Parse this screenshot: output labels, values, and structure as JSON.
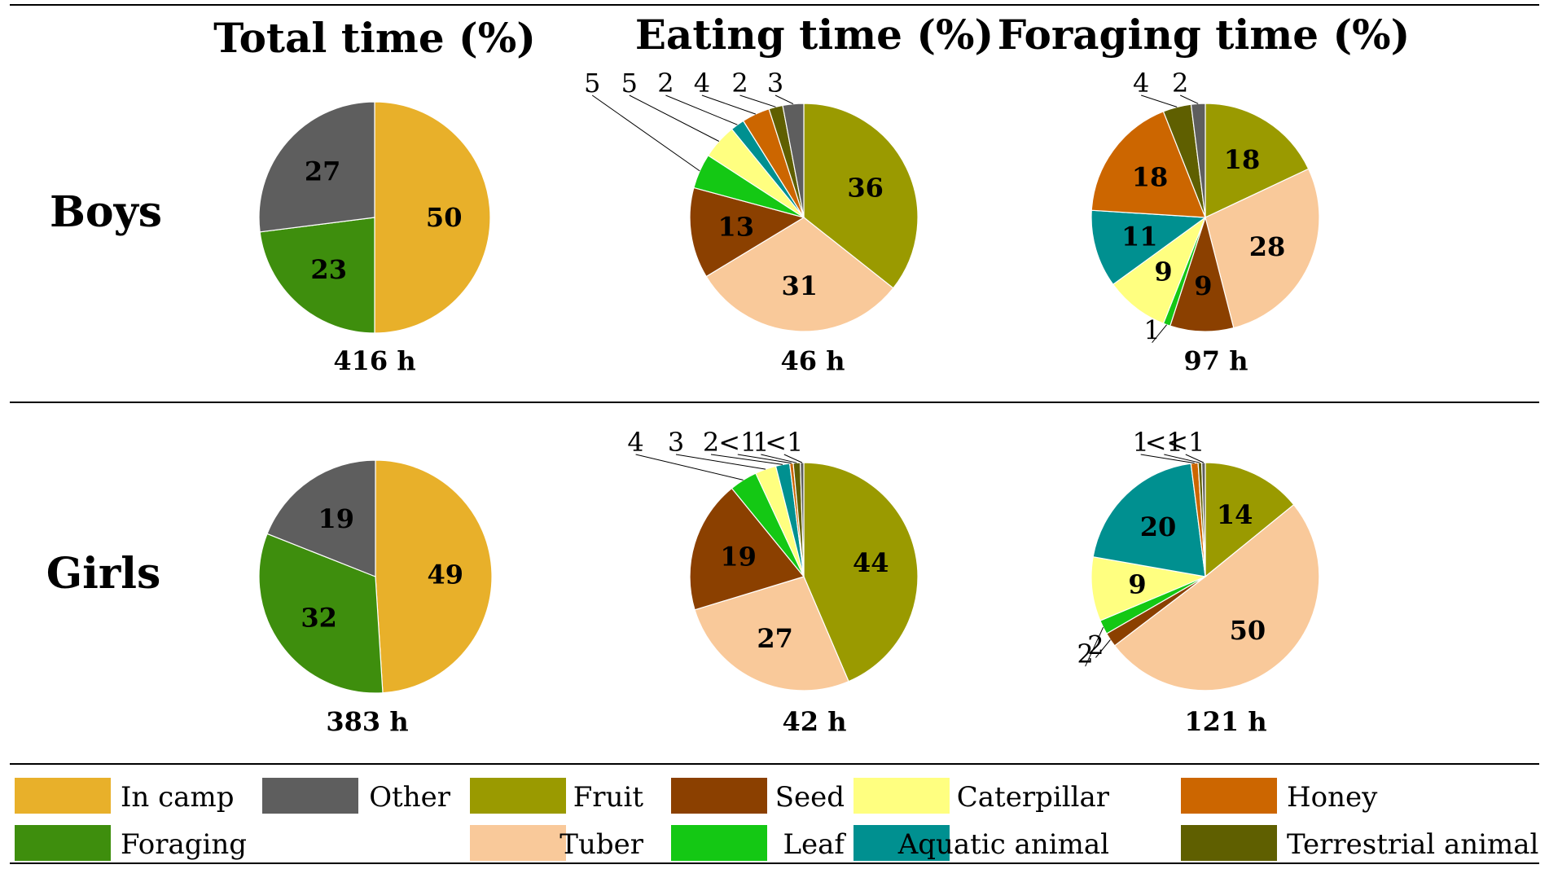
{
  "chart_data": {
    "type": "pie",
    "column_titles": [
      "Total time (%)",
      "Eating time (%)",
      "Foraging time (%)"
    ],
    "row_labels": [
      "Boys",
      "Girls"
    ],
    "colors": {
      "In camp": "#E8B02A",
      "Other": "#5E5E5E",
      "Foraging": "#3E8E0D",
      "Fruit": "#9A9A00",
      "Tuber": "#F9C99A",
      "Seed": "#8B4000",
      "Leaf": "#14C814",
      "Caterpillar": "#FFFF80",
      "Aquatic animal": "#009090",
      "Honey": "#CC6600",
      "Terrestrial animal": "#5F5F00"
    },
    "legend": [
      "In camp",
      "Other",
      "Fruit",
      "Seed",
      "Caterpillar",
      "Honey",
      "Foraging",
      "Tuber",
      "Leaf",
      "Aquatic animal",
      "Terrestrial animal"
    ],
    "charts": [
      {
        "id": "boys-total",
        "group": "Boys",
        "title": "Total time (%)",
        "hours": "416 h",
        "slices": [
          {
            "category": "In camp",
            "value": 50,
            "label": "50"
          },
          {
            "category": "Foraging",
            "value": 23,
            "label": "23"
          },
          {
            "category": "Other",
            "value": 27,
            "label": "27"
          }
        ]
      },
      {
        "id": "boys-eating",
        "group": "Boys",
        "title": "Eating time (%)",
        "hours": "46 h",
        "slices": [
          {
            "category": "Fruit",
            "value": 36,
            "label": "36"
          },
          {
            "category": "Tuber",
            "value": 31,
            "label": "31"
          },
          {
            "category": "Seed",
            "value": 13,
            "label": "13"
          },
          {
            "category": "Leaf",
            "value": 5,
            "label": "5"
          },
          {
            "category": "Caterpillar",
            "value": 5,
            "label": "5"
          },
          {
            "category": "Aquatic animal",
            "value": 2,
            "label": "2"
          },
          {
            "category": "Honey",
            "value": 4,
            "label": "4"
          },
          {
            "category": "Terrestrial animal",
            "value": 2,
            "label": "2"
          },
          {
            "category": "Other",
            "value": 3,
            "label": "3"
          }
        ]
      },
      {
        "id": "boys-foraging",
        "group": "Boys",
        "title": "Foraging time (%)",
        "hours": "97 h",
        "slices": [
          {
            "category": "Fruit",
            "value": 18,
            "label": "18"
          },
          {
            "category": "Tuber",
            "value": 28,
            "label": "28"
          },
          {
            "category": "Seed",
            "value": 9,
            "label": "9"
          },
          {
            "category": "Leaf",
            "value": 1,
            "label": "1"
          },
          {
            "category": "Caterpillar",
            "value": 9,
            "label": "9"
          },
          {
            "category": "Aquatic animal",
            "value": 11,
            "label": "11"
          },
          {
            "category": "Honey",
            "value": 18,
            "label": "18"
          },
          {
            "category": "Terrestrial animal",
            "value": 4,
            "label": "4"
          },
          {
            "category": "Other",
            "value": 2,
            "label": "2"
          }
        ]
      },
      {
        "id": "girls-total",
        "group": "Girls",
        "title": "Total time (%)",
        "hours": "383 h",
        "slices": [
          {
            "category": "In camp",
            "value": 49,
            "label": "49"
          },
          {
            "category": "Foraging",
            "value": 32,
            "label": "32"
          },
          {
            "category": "Other",
            "value": 19,
            "label": "19"
          }
        ]
      },
      {
        "id": "girls-eating",
        "group": "Girls",
        "title": "Eating time (%)",
        "hours": "42 h",
        "slices": [
          {
            "category": "Fruit",
            "value": 44,
            "label": "44"
          },
          {
            "category": "Tuber",
            "value": 27,
            "label": "27"
          },
          {
            "category": "Seed",
            "value": 19,
            "label": "19"
          },
          {
            "category": "Leaf",
            "value": 4,
            "label": "4"
          },
          {
            "category": "Caterpillar",
            "value": 3,
            "label": "3"
          },
          {
            "category": "Aquatic animal",
            "value": 2,
            "label": "2"
          },
          {
            "category": "Honey",
            "value": 0.5,
            "label": "<1"
          },
          {
            "category": "Terrestrial animal",
            "value": 1,
            "label": "1"
          },
          {
            "category": "Other",
            "value": 0.5,
            "label": "<1"
          }
        ]
      },
      {
        "id": "girls-foraging",
        "group": "Girls",
        "title": "Foraging time (%)",
        "hours": "121 h",
        "slices": [
          {
            "category": "Fruit",
            "value": 14,
            "label": "14"
          },
          {
            "category": "Tuber",
            "value": 50,
            "label": "50"
          },
          {
            "category": "Seed",
            "value": 2,
            "label": "2"
          },
          {
            "category": "Leaf",
            "value": 2,
            "label": "2"
          },
          {
            "category": "Caterpillar",
            "value": 9,
            "label": "9"
          },
          {
            "category": "Aquatic animal",
            "value": 20,
            "label": "20"
          },
          {
            "category": "Honey",
            "value": 1,
            "label": "1"
          },
          {
            "category": "Terrestrial animal",
            "value": 0.5,
            "label": "<1"
          },
          {
            "category": "Other",
            "value": 0.5,
            "label": "<1"
          }
        ]
      }
    ]
  }
}
